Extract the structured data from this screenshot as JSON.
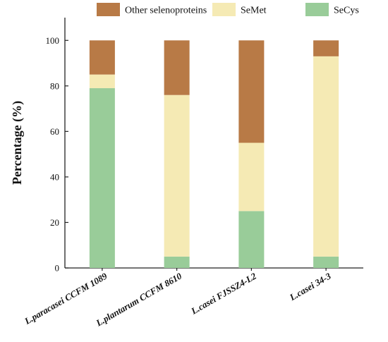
{
  "chart_data": {
    "type": "bar",
    "stacked": true,
    "title": "",
    "xlabel": "",
    "ylabel": "Percentage (%)",
    "ylim": [
      0,
      110
    ],
    "yticks": [
      0,
      20,
      40,
      60,
      80,
      100
    ],
    "grid": false,
    "legend_position": "top",
    "categories": [
      "L.paracasei CCFM 1089",
      "L.plantarum CCFM 8610",
      "L.casei FJSSZ4-L2",
      "L.casei 34-3"
    ],
    "series": [
      {
        "name": "SeCys",
        "color": "#99cc99",
        "values": [
          79,
          5,
          25,
          5
        ]
      },
      {
        "name": "SeMet",
        "color": "#f5eab4",
        "values": [
          6,
          71,
          30,
          88
        ]
      },
      {
        "name": "Other selenoproteins",
        "color": "#b87a46",
        "values": [
          15,
          24,
          45,
          7
        ]
      }
    ],
    "legend_order": [
      "Other selenoproteins",
      "SeMet",
      "SeCys"
    ]
  }
}
